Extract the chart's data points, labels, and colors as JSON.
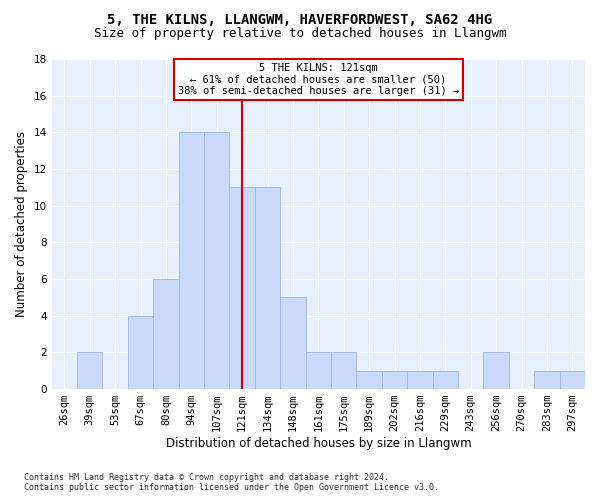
{
  "title1": "5, THE KILNS, LLANGWM, HAVERFORDWEST, SA62 4HG",
  "title2": "Size of property relative to detached houses in Llangwm",
  "xlabel": "Distribution of detached houses by size in Llangwm",
  "ylabel": "Number of detached properties",
  "footnote": "Contains HM Land Registry data © Crown copyright and database right 2024.\nContains public sector information licensed under the Open Government Licence v3.0.",
  "bar_labels": [
    "26sqm",
    "39sqm",
    "53sqm",
    "67sqm",
    "80sqm",
    "94sqm",
    "107sqm",
    "121sqm",
    "134sqm",
    "148sqm",
    "161sqm",
    "175sqm",
    "189sqm",
    "202sqm",
    "216sqm",
    "229sqm",
    "243sqm",
    "256sqm",
    "270sqm",
    "283sqm",
    "297sqm"
  ],
  "bar_values": [
    0,
    2,
    0,
    4,
    6,
    14,
    14,
    11,
    11,
    5,
    2,
    2,
    1,
    1,
    1,
    1,
    0,
    2,
    0,
    1,
    1
  ],
  "bar_color": "#c9daf8",
  "bar_edge_color": "#9db8e8",
  "vline_index": 7,
  "vline_color": "#cc0000",
  "annotation_text": "5 THE KILNS: 121sqm\n← 61% of detached houses are smaller (50)\n38% of semi-detached houses are larger (31) →",
  "annotation_box_color": "#ffffff",
  "annotation_box_edge": "#cc0000",
  "ylim": [
    0,
    18
  ],
  "yticks": [
    0,
    2,
    4,
    6,
    8,
    10,
    12,
    14,
    16,
    18
  ],
  "bg_color": "#e8f0fe",
  "title1_fontsize": 10,
  "title2_fontsize": 9,
  "xlabel_fontsize": 8.5,
  "ylabel_fontsize": 8.5,
  "tick_fontsize": 7.5,
  "annot_fontsize": 7.5
}
